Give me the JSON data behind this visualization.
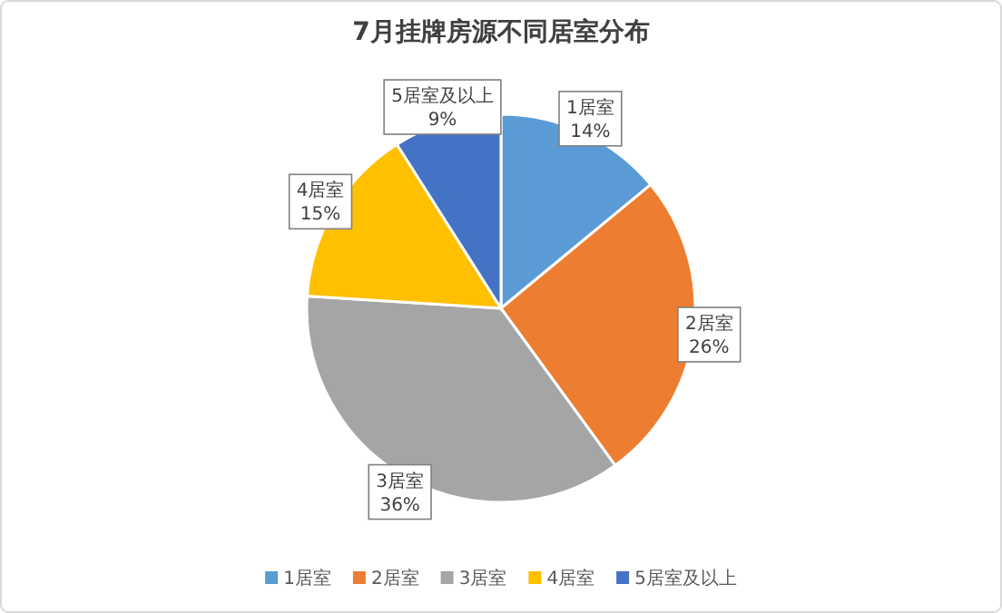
{
  "chart_data": {
    "type": "pie",
    "title": "7月挂牌房源不同居室分布",
    "categories": [
      "1居室",
      "2居室",
      "3居室",
      "4居室",
      "5居室及以上"
    ],
    "values": [
      14,
      26,
      36,
      15,
      9
    ],
    "colors": [
      "#5b9bd5",
      "#ed7d31",
      "#a5a5a5",
      "#ffc000",
      "#4472c4"
    ],
    "value_labels": [
      "14%",
      "26%",
      "36%",
      "15%",
      "9%"
    ],
    "legend": "bottom"
  }
}
